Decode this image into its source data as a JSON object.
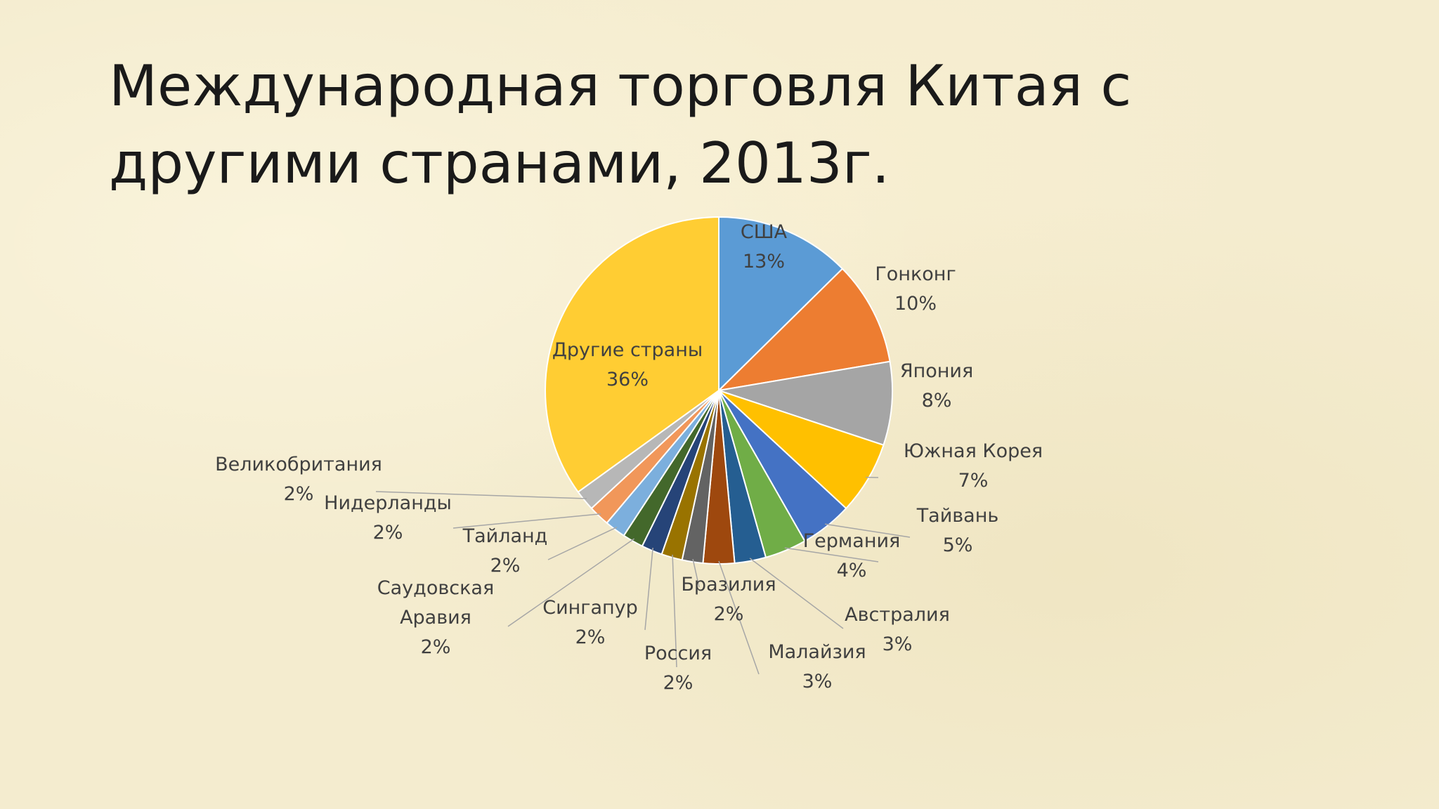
{
  "title": "Международная торговля Китая с другими странами, 2013г.",
  "chart_data": {
    "type": "pie",
    "title": "Международная торговля Китая с другими странами, 2013г.",
    "start_angle_deg": 0,
    "direction": "clockwise",
    "slices": [
      {
        "name": "США",
        "value": 13,
        "label": "13%",
        "color": "#5b9bd5"
      },
      {
        "name": "Гонконг",
        "value": 10,
        "label": "10%",
        "color": "#ed7d31"
      },
      {
        "name": "Япония",
        "value": 8,
        "label": "8%",
        "color": "#a5a5a5"
      },
      {
        "name": "Южная Корея",
        "value": 7,
        "label": "7%",
        "color": "#ffc000"
      },
      {
        "name": "Тайвань",
        "value": 5,
        "label": "5%",
        "color": "#4472c4"
      },
      {
        "name": "Германия",
        "value": 4,
        "label": "4%",
        "color": "#70ad47"
      },
      {
        "name": "Австралия",
        "value": 3,
        "label": "3%",
        "color": "#255e91"
      },
      {
        "name": "Малайзия",
        "value": 3,
        "label": "3%",
        "color": "#9e480e"
      },
      {
        "name": "Бразилия",
        "value": 2,
        "label": "2%",
        "color": "#636363"
      },
      {
        "name": "Россия",
        "value": 2,
        "label": "2%",
        "color": "#997300"
      },
      {
        "name": "Сингапур",
        "value": 2,
        "label": "2%",
        "color": "#264478"
      },
      {
        "name": "Саудовская Аравия",
        "value": 2,
        "label": "2%",
        "color": "#43682b"
      },
      {
        "name": "Тайланд",
        "value": 2,
        "label": "2%",
        "color": "#7cafdd"
      },
      {
        "name": "Нидерланды",
        "value": 2,
        "label": "2%",
        "color": "#f1975a"
      },
      {
        "name": "Великобритания",
        "value": 2,
        "label": "2%",
        "color": "#b7b7b7"
      },
      {
        "name": "Другие страны",
        "value": 36,
        "label": "36%",
        "color": "#ffcd33"
      }
    ]
  }
}
